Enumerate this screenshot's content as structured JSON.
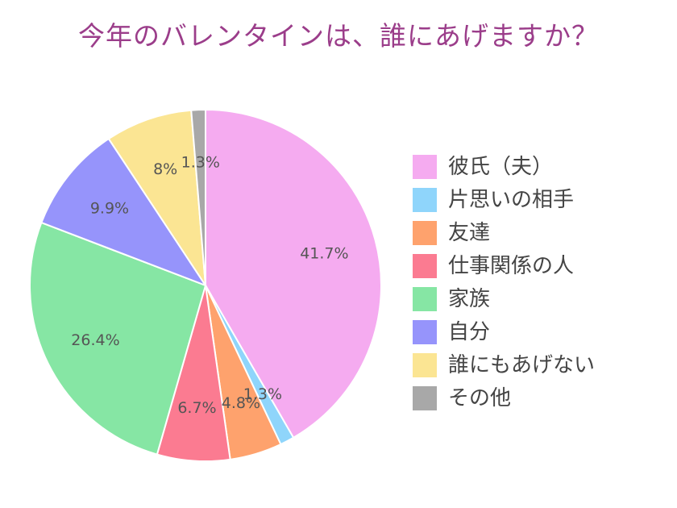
{
  "chart_data": {
    "type": "pie",
    "title": "今年のバレンタインは、誰にあげますか？",
    "categories": [
      "彼氏（夫）",
      "片思いの相手",
      "友達",
      "仕事関係の人",
      "家族",
      "自分",
      "誰にもあげない",
      "その他"
    ],
    "values": [
      41.7,
      1.3,
      4.8,
      6.7,
      26.4,
      9.9,
      8,
      1.3
    ],
    "labels": [
      "41.7%",
      "1.3%",
      "4.8%",
      "6.7%",
      "26.4%",
      "9.9%",
      "8%",
      "1.3%"
    ],
    "colors": [
      "#f5abf0",
      "#8fd5fb",
      "#fea26d",
      "#fb7b91",
      "#86e6a4",
      "#9694fb",
      "#fbe593",
      "#a8a8a8"
    ],
    "start_angle": "12 o'clock",
    "direction": "clockwise",
    "legend": "right"
  }
}
